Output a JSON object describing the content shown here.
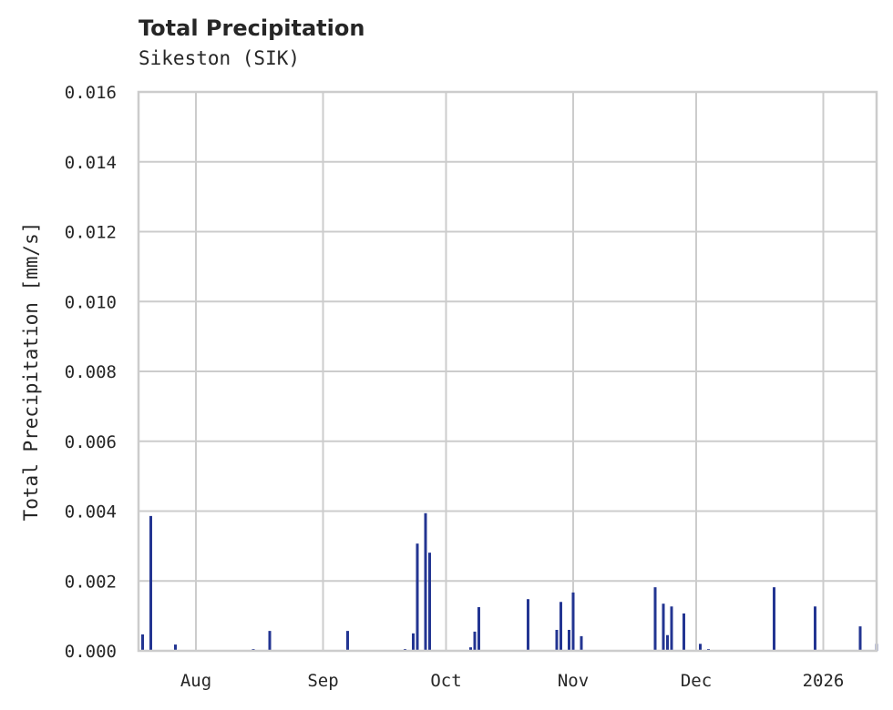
{
  "header": {
    "title": "Total Precipitation",
    "subtitle": "Sikeston (SIK)"
  },
  "colors": {
    "bar": "#233592",
    "grid": "#cccccc",
    "text": "#262626"
  },
  "chart_data": {
    "type": "bar",
    "title": "Total Precipitation",
    "subtitle": "Sikeston (SIK)",
    "xlabel": "",
    "ylabel": "Total Precipitation [mm/s]",
    "ylim": [
      0,
      0.016
    ],
    "yticks": [
      "0.000",
      "0.002",
      "0.004",
      "0.006",
      "0.008",
      "0.010",
      "0.012",
      "0.014",
      "0.016"
    ],
    "xticks": [
      "Aug",
      "Sep",
      "Oct",
      "Nov",
      "Dec",
      "2026"
    ],
    "xrange": [
      "2025-07-18",
      "2026-01-14"
    ],
    "grid": true,
    "legend": "none",
    "series": [
      {
        "name": "Total Precipitation",
        "points": [
          {
            "date": "2025-07-19",
            "value": 0.00047
          },
          {
            "date": "2025-07-21",
            "value": 0.00386
          },
          {
            "date": "2025-07-27",
            "value": 0.00018
          },
          {
            "date": "2025-08-15",
            "value": 5e-05
          },
          {
            "date": "2025-08-19",
            "value": 0.00057
          },
          {
            "date": "2025-09-07",
            "value": 0.00057
          },
          {
            "date": "2025-09-21",
            "value": 5e-05
          },
          {
            "date": "2025-09-23",
            "value": 0.0005
          },
          {
            "date": "2025-09-24",
            "value": 0.00307
          },
          {
            "date": "2025-09-26",
            "value": 0.00394
          },
          {
            "date": "2025-09-27",
            "value": 0.00281
          },
          {
            "date": "2025-10-07",
            "value": 0.0001
          },
          {
            "date": "2025-10-08",
            "value": 0.00055
          },
          {
            "date": "2025-10-09",
            "value": 0.00125
          },
          {
            "date": "2025-10-21",
            "value": 0.00148
          },
          {
            "date": "2025-10-28",
            "value": 0.0006
          },
          {
            "date": "2025-10-29",
            "value": 0.0014
          },
          {
            "date": "2025-10-31",
            "value": 0.0006
          },
          {
            "date": "2025-11-01",
            "value": 0.00167
          },
          {
            "date": "2025-11-03",
            "value": 0.00042
          },
          {
            "date": "2025-11-21",
            "value": 0.00182
          },
          {
            "date": "2025-11-23",
            "value": 0.00135
          },
          {
            "date": "2025-11-24",
            "value": 0.00045
          },
          {
            "date": "2025-11-25",
            "value": 0.00127
          },
          {
            "date": "2025-11-28",
            "value": 0.00107
          },
          {
            "date": "2025-12-02",
            "value": 0.0002
          },
          {
            "date": "2025-12-04",
            "value": 5e-05
          },
          {
            "date": "2025-12-20",
            "value": 0.00182
          },
          {
            "date": "2025-12-30",
            "value": 0.00127
          },
          {
            "date": "2026-01-10",
            "value": 0.0007
          },
          {
            "date": "2026-01-14",
            "value": 0.0002
          }
        ]
      }
    ]
  }
}
